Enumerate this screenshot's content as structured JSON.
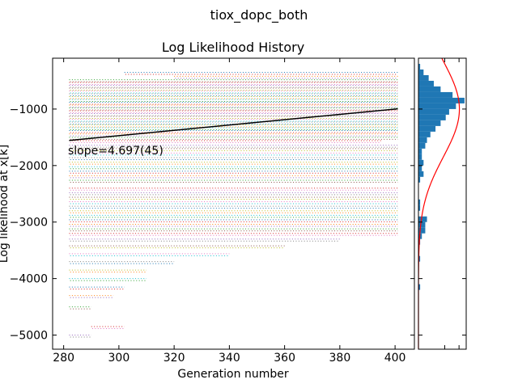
{
  "figure": {
    "suptitle": "tiox_dopc_both"
  },
  "chart_data": [
    {
      "type": "scatter",
      "title": "Log Likelihood History",
      "xlabel": "Generation number",
      "ylabel": "Log likelihood at x[k]",
      "xlim": [
        276,
        407
      ],
      "ylim": [
        -5250,
        -100
      ],
      "xticks": [
        280,
        300,
        320,
        340,
        360,
        380,
        400
      ],
      "yticks": [
        -5000,
        -4000,
        -3000,
        -2000,
        -1000
      ],
      "x_range": [
        282,
        401
      ],
      "series_colors": [
        "#1f77b4",
        "#ff7f0e",
        "#2ca02c",
        "#d62728",
        "#9467bd",
        "#8c564b",
        "#e377c2",
        "#7f7f7f",
        "#bcbd22",
        "#17becf"
      ],
      "population_levels": [
        {
          "y": -350,
          "x_from": 302,
          "x_to": 401
        },
        {
          "y": -420,
          "x_from": 320,
          "x_to": 401
        },
        {
          "y": -480,
          "x_from": 282,
          "x_to": 401
        },
        {
          "y": -530,
          "x_from": 282,
          "x_to": 401
        },
        {
          "y": -580,
          "x_from": 282,
          "x_to": 401
        },
        {
          "y": -630,
          "x_from": 282,
          "x_to": 401
        },
        {
          "y": -680,
          "x_from": 282,
          "x_to": 401
        },
        {
          "y": -730,
          "x_from": 282,
          "x_to": 401
        },
        {
          "y": -780,
          "x_from": 282,
          "x_to": 401
        },
        {
          "y": -830,
          "x_from": 282,
          "x_to": 401
        },
        {
          "y": -880,
          "x_from": 282,
          "x_to": 401
        },
        {
          "y": -930,
          "x_from": 282,
          "x_to": 401
        },
        {
          "y": -980,
          "x_from": 282,
          "x_to": 401
        },
        {
          "y": -1030,
          "x_from": 282,
          "x_to": 401
        },
        {
          "y": -1080,
          "x_from": 282,
          "x_to": 401
        },
        {
          "y": -1130,
          "x_from": 282,
          "x_to": 401
        },
        {
          "y": -1180,
          "x_from": 282,
          "x_to": 401
        },
        {
          "y": -1230,
          "x_from": 282,
          "x_to": 401
        },
        {
          "y": -1280,
          "x_from": 282,
          "x_to": 401
        },
        {
          "y": -1330,
          "x_from": 282,
          "x_to": 401
        },
        {
          "y": -1380,
          "x_from": 282,
          "x_to": 401
        },
        {
          "y": -1440,
          "x_from": 282,
          "x_to": 401
        },
        {
          "y": -1500,
          "x_from": 282,
          "x_to": 401
        },
        {
          "y": -1560,
          "x_from": 282,
          "x_to": 395
        },
        {
          "y": -1640,
          "x_from": 282,
          "x_to": 401
        },
        {
          "y": -1700,
          "x_from": 282,
          "x_to": 401
        },
        {
          "y": -1780,
          "x_from": 282,
          "x_to": 401
        },
        {
          "y": -1860,
          "x_from": 282,
          "x_to": 401
        },
        {
          "y": -1940,
          "x_from": 282,
          "x_to": 401
        },
        {
          "y": -2020,
          "x_from": 282,
          "x_to": 401
        },
        {
          "y": -2100,
          "x_from": 282,
          "x_to": 401
        },
        {
          "y": -2180,
          "x_from": 282,
          "x_to": 401
        },
        {
          "y": -2260,
          "x_from": 282,
          "x_to": 401
        },
        {
          "y": -2400,
          "x_from": 282,
          "x_to": 401
        },
        {
          "y": -2480,
          "x_from": 282,
          "x_to": 401
        },
        {
          "y": -2560,
          "x_from": 282,
          "x_to": 401
        },
        {
          "y": -2640,
          "x_from": 282,
          "x_to": 401
        },
        {
          "y": -2720,
          "x_from": 282,
          "x_to": 401
        },
        {
          "y": -2800,
          "x_from": 282,
          "x_to": 401
        },
        {
          "y": -2880,
          "x_from": 282,
          "x_to": 401
        },
        {
          "y": -2960,
          "x_from": 282,
          "x_to": 401
        },
        {
          "y": -3040,
          "x_from": 282,
          "x_to": 401
        },
        {
          "y": -3120,
          "x_from": 282,
          "x_to": 401
        },
        {
          "y": -3200,
          "x_from": 282,
          "x_to": 401
        },
        {
          "y": -3300,
          "x_from": 282,
          "x_to": 380
        },
        {
          "y": -3420,
          "x_from": 282,
          "x_to": 360
        },
        {
          "y": -3560,
          "x_from": 282,
          "x_to": 340
        },
        {
          "y": -3700,
          "x_from": 282,
          "x_to": 320
        },
        {
          "y": -3850,
          "x_from": 282,
          "x_to": 310
        },
        {
          "y": -4000,
          "x_from": 282,
          "x_to": 310
        },
        {
          "y": -4150,
          "x_from": 282,
          "x_to": 302
        },
        {
          "y": -4300,
          "x_from": 282,
          "x_to": 298
        },
        {
          "y": -4500,
          "x_from": 282,
          "x_to": 290
        },
        {
          "y": -4850,
          "x_from": 290,
          "x_to": 302
        },
        {
          "y": -5000,
          "x_from": 282,
          "x_to": 290
        }
      ],
      "trend_line": {
        "x": [
          282,
          401
        ],
        "y": [
          -1555,
          -996
        ]
      },
      "annotation": "slope=4.697(45)"
    },
    {
      "type": "bar",
      "orientation": "horizontal",
      "ylim": [
        -5250,
        -100
      ],
      "bar_color": "#1f77b4",
      "fit_color": "#ff0000",
      "bins": [
        {
          "y": -250,
          "count": 1
        },
        {
          "y": -350,
          "count": 3
        },
        {
          "y": -450,
          "count": 6
        },
        {
          "y": -550,
          "count": 9
        },
        {
          "y": -650,
          "count": 13
        },
        {
          "y": -750,
          "count": 20
        },
        {
          "y": -850,
          "count": 27
        },
        {
          "y": -950,
          "count": 22
        },
        {
          "y": -1050,
          "count": 18
        },
        {
          "y": -1150,
          "count": 16
        },
        {
          "y": -1250,
          "count": 13
        },
        {
          "y": -1350,
          "count": 10
        },
        {
          "y": -1450,
          "count": 7
        },
        {
          "y": -1550,
          "count": 5
        },
        {
          "y": -1650,
          "count": 4
        },
        {
          "y": -1750,
          "count": 2
        },
        {
          "y": -1850,
          "count": 2
        },
        {
          "y": -1950,
          "count": 3
        },
        {
          "y": -2050,
          "count": 2
        },
        {
          "y": -2150,
          "count": 3
        },
        {
          "y": -2250,
          "count": 1
        },
        {
          "y": -2650,
          "count": 1
        },
        {
          "y": -2750,
          "count": 1
        },
        {
          "y": -2950,
          "count": 5
        },
        {
          "y": -3050,
          "count": 4
        },
        {
          "y": -3150,
          "count": 4
        },
        {
          "y": -3250,
          "count": 2
        },
        {
          "y": -3350,
          "count": 1
        },
        {
          "y": -3650,
          "count": 1
        },
        {
          "y": -4150,
          "count": 1
        }
      ],
      "count_max": 28,
      "fit": {
        "mu": -1000,
        "sigma": 850,
        "peak_count": 24
      }
    }
  ]
}
